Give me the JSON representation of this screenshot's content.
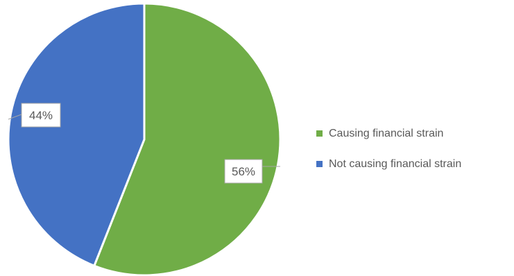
{
  "chart_data": {
    "type": "pie",
    "title": "",
    "categories": [
      "Causing financial strain",
      "Not causing financial strain"
    ],
    "values": [
      56,
      44
    ],
    "data_labels": [
      "56%",
      "44%"
    ],
    "colors": [
      "#70AD47",
      "#4472C4"
    ],
    "start_angle_deg": 0,
    "direction": "clockwise",
    "legend_position": "right"
  }
}
